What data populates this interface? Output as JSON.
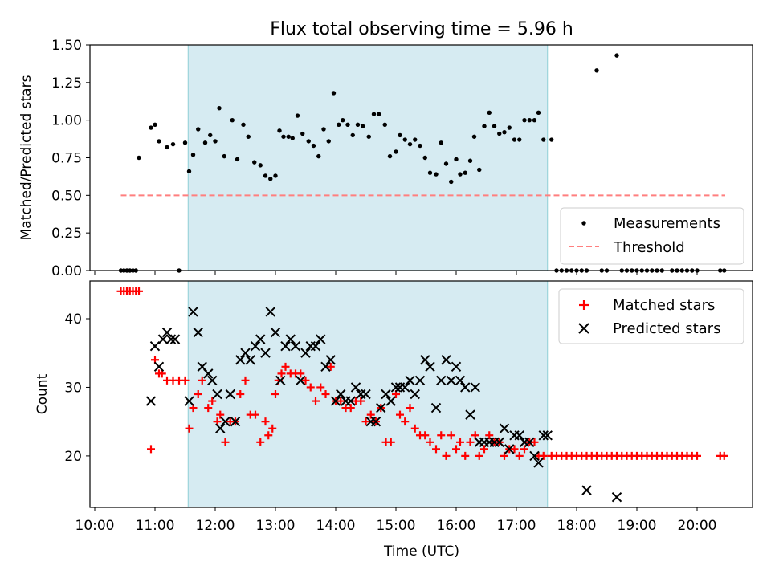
{
  "chart_data": [
    {
      "type": "scatter",
      "title": "Flux total observing time = 5.96 h",
      "xlabel": "",
      "ylabel": "Matched/Predicted stars",
      "ylim": [
        0,
        1.5
      ],
      "yticks": [
        "0.00",
        "0.25",
        "0.50",
        "0.75",
        "1.00",
        "1.25",
        "1.50"
      ],
      "shaded_span": {
        "start": "11:33",
        "end": "17:31",
        "color": "#add8e6"
      },
      "series": [
        {
          "name": "Measurements",
          "marker": "dot",
          "color": "#000000",
          "x": [
            "10:26",
            "10:29",
            "10:32",
            "10:35",
            "10:38",
            "10:41",
            "10:44",
            "10:56",
            "11:00",
            "11:04",
            "11:12",
            "11:18",
            "11:24",
            "11:30",
            "11:34",
            "11:38",
            "11:43",
            "11:50",
            "11:55",
            "12:00",
            "12:04",
            "12:09",
            "12:17",
            "12:22",
            "12:28",
            "12:33",
            "12:39",
            "12:45",
            "12:50",
            "12:55",
            "13:00",
            "13:04",
            "13:08",
            "13:13",
            "13:17",
            "13:22",
            "13:27",
            "13:33",
            "13:38",
            "13:43",
            "13:48",
            "13:53",
            "13:58",
            "14:03",
            "14:07",
            "14:12",
            "14:17",
            "14:22",
            "14:27",
            "14:33",
            "14:38",
            "14:43",
            "14:49",
            "14:54",
            "15:00",
            "15:04",
            "15:09",
            "15:14",
            "15:19",
            "15:24",
            "15:29",
            "15:34",
            "15:40",
            "15:45",
            "15:50",
            "15:55",
            "16:00",
            "16:04",
            "16:09",
            "16:14",
            "16:18",
            "16:23",
            "16:28",
            "16:33",
            "16:38",
            "16:43",
            "16:48",
            "16:53",
            "16:58",
            "17:03",
            "17:08",
            "17:13",
            "17:18",
            "17:22",
            "17:27",
            "17:35",
            "17:40",
            "17:45",
            "17:50",
            "17:55",
            "18:00",
            "18:05",
            "18:10",
            "18:20",
            "18:25",
            "18:30",
            "18:40",
            "18:45",
            "18:50",
            "18:55",
            "19:00",
            "19:05",
            "19:10",
            "19:15",
            "19:20",
            "19:25",
            "19:35",
            "19:40",
            "19:45",
            "19:50",
            "19:55",
            "20:00",
            "20:23",
            "20:27"
          ],
          "y": [
            0,
            0,
            0,
            0,
            0,
            0,
            0.75,
            0.95,
            0.97,
            0.86,
            0.82,
            0.84,
            0,
            0.85,
            0.66,
            0.77,
            0.94,
            0.85,
            0.9,
            0.86,
            1.08,
            0.76,
            1.0,
            0.74,
            0.97,
            0.89,
            0.72,
            0.7,
            0.63,
            0.61,
            0.63,
            0.93,
            0.89,
            0.89,
            0.88,
            1.03,
            0.91,
            0.86,
            0.83,
            0.76,
            0.94,
            0.86,
            1.18,
            0.97,
            1.0,
            0.97,
            0.9,
            0.97,
            0.96,
            0.89,
            1.04,
            1.04,
            0.97,
            0.76,
            0.79,
            0.9,
            0.87,
            0.84,
            0.87,
            0.83,
            0.75,
            0.65,
            0.64,
            0.85,
            0.71,
            0.59,
            0.74,
            0.64,
            0.65,
            0.73,
            0.89,
            0.67,
            0.96,
            1.05,
            0.96,
            0.91,
            0.92,
            0.95,
            0.87,
            0.87,
            1.0,
            1.0,
            1.0,
            1.05,
            0.87,
            0.87,
            0,
            0,
            0,
            0,
            0,
            0,
            0,
            1.33,
            0,
            0,
            1.43,
            0,
            0,
            0,
            0,
            0,
            0,
            0,
            0,
            0,
            0,
            0,
            0,
            0,
            0,
            0,
            0,
            0
          ]
        },
        {
          "name": "Threshold",
          "line_style": "dashed",
          "color": "#ff7f7f",
          "x": [
            "10:26",
            "20:28"
          ],
          "y": [
            0.5,
            0.5
          ]
        }
      ],
      "legend_location": "lower-right"
    },
    {
      "type": "scatter",
      "title": "",
      "xlabel": "Time (UTC)",
      "ylabel": "Count",
      "ylim": [
        12.5,
        45.5
      ],
      "yticks": [
        "20",
        "30",
        "40"
      ],
      "xticks": [
        "10:00",
        "11:00",
        "12:00",
        "13:00",
        "14:00",
        "15:00",
        "16:00",
        "17:00",
        "18:00",
        "19:00",
        "20:00"
      ],
      "shaded_span": {
        "start": "11:33",
        "end": "17:31",
        "color": "#add8e6"
      },
      "series": [
        {
          "name": "Matched stars",
          "marker": "plus",
          "color": "#ff0000",
          "x": [
            "10:26",
            "10:29",
            "10:32",
            "10:35",
            "10:38",
            "10:41",
            "10:44",
            "10:56",
            "11:00",
            "11:04",
            "11:07",
            "11:12",
            "11:18",
            "11:24",
            "11:30",
            "11:34",
            "11:38",
            "11:43",
            "11:47",
            "11:53",
            "11:57",
            "12:02",
            "12:05",
            "12:10",
            "12:15",
            "12:20",
            "12:25",
            "12:30",
            "12:35",
            "12:40",
            "12:45",
            "12:50",
            "12:53",
            "12:57",
            "13:00",
            "13:03",
            "13:06",
            "13:10",
            "13:15",
            "13:20",
            "13:25",
            "13:30",
            "13:35",
            "13:40",
            "13:45",
            "13:50",
            "13:55",
            "14:00",
            "14:05",
            "14:10",
            "14:15",
            "14:20",
            "14:25",
            "14:30",
            "14:35",
            "14:40",
            "14:45",
            "14:50",
            "14:55",
            "15:00",
            "15:04",
            "15:09",
            "15:14",
            "15:19",
            "15:24",
            "15:29",
            "15:34",
            "15:40",
            "15:45",
            "15:50",
            "15:55",
            "16:00",
            "16:04",
            "16:09",
            "16:14",
            "16:19",
            "16:23",
            "16:28",
            "16:33",
            "16:38",
            "16:43",
            "16:48",
            "16:53",
            "16:58",
            "17:03",
            "17:08",
            "17:13",
            "17:18",
            "17:22",
            "17:27",
            "17:35",
            "17:40",
            "17:45",
            "17:50",
            "17:55",
            "18:00",
            "18:05",
            "18:10",
            "18:15",
            "18:20",
            "18:25",
            "18:30",
            "18:35",
            "18:40",
            "18:45",
            "18:50",
            "18:55",
            "19:00",
            "19:05",
            "19:10",
            "19:15",
            "19:20",
            "19:25",
            "19:30",
            "19:35",
            "19:40",
            "19:45",
            "19:50",
            "19:55",
            "20:00",
            "20:23",
            "20:27"
          ],
          "y": [
            44,
            44,
            44,
            44,
            44,
            44,
            44,
            21,
            34,
            32,
            32,
            31,
            31,
            31,
            31,
            24,
            27,
            29,
            31,
            27,
            28,
            25,
            26,
            22,
            25,
            25,
            29,
            31,
            26,
            26,
            22,
            25,
            23,
            24,
            29,
            31,
            32,
            33,
            32,
            32,
            32,
            31,
            30,
            28,
            30,
            29,
            33,
            28,
            28,
            27,
            27,
            28,
            28,
            25,
            26,
            25,
            27,
            22,
            22,
            29,
            26,
            25,
            27,
            24,
            23,
            23,
            22,
            21,
            23,
            20,
            23,
            21,
            22,
            20,
            22,
            23,
            20,
            21,
            23,
            22,
            22,
            20,
            21,
            21,
            20,
            21,
            22,
            22,
            20,
            20,
            20,
            20,
            20,
            20,
            20,
            20,
            20,
            20,
            20,
            20,
            20,
            20,
            20,
            20,
            20,
            20,
            20,
            20,
            20,
            20,
            20,
            20,
            20,
            20,
            20,
            20,
            20,
            20,
            20,
            20,
            20,
            20
          ]
        },
        {
          "name": "Predicted stars",
          "marker": "x",
          "color": "#000000",
          "x": [
            "10:56",
            "11:00",
            "11:04",
            "11:08",
            "11:12",
            "11:16",
            "11:20",
            "11:34",
            "11:38",
            "11:43",
            "11:47",
            "11:53",
            "11:57",
            "12:02",
            "12:05",
            "12:10",
            "12:15",
            "12:20",
            "12:25",
            "12:30",
            "12:35",
            "12:40",
            "12:45",
            "12:50",
            "12:55",
            "13:00",
            "13:05",
            "13:10",
            "13:15",
            "13:20",
            "13:25",
            "13:30",
            "13:35",
            "13:40",
            "13:45",
            "13:50",
            "13:55",
            "14:00",
            "14:05",
            "14:10",
            "14:15",
            "14:20",
            "14:25",
            "14:30",
            "14:35",
            "14:40",
            "14:45",
            "14:50",
            "14:55",
            "15:00",
            "15:04",
            "15:09",
            "15:14",
            "15:19",
            "15:24",
            "15:29",
            "15:34",
            "15:40",
            "15:45",
            "15:50",
            "15:55",
            "16:00",
            "16:04",
            "16:09",
            "16:14",
            "16:19",
            "16:23",
            "16:28",
            "16:33",
            "16:38",
            "16:43",
            "16:48",
            "16:53",
            "16:58",
            "17:03",
            "17:08",
            "17:13",
            "17:18",
            "17:22",
            "17:27",
            "17:31",
            "18:10",
            "18:40"
          ],
          "y": [
            28,
            36,
            33,
            37,
            38,
            37,
            37,
            28,
            41,
            38,
            33,
            32,
            31,
            29,
            24,
            25,
            29,
            25,
            34,
            35,
            34,
            36,
            37,
            35,
            41,
            38,
            31,
            36,
            37,
            36,
            31,
            35,
            36,
            36,
            37,
            33,
            34,
            28,
            29,
            28,
            28,
            30,
            29,
            29,
            25,
            25,
            27,
            29,
            28,
            30,
            30,
            30,
            31,
            29,
            31,
            34,
            33,
            27,
            31,
            34,
            31,
            33,
            31,
            30,
            26,
            30,
            22,
            22,
            22,
            22,
            22,
            24,
            21,
            23,
            23,
            22,
            22,
            20,
            19,
            23,
            23,
            15,
            14
          ]
        }
      ],
      "legend_location": "upper-right"
    }
  ]
}
